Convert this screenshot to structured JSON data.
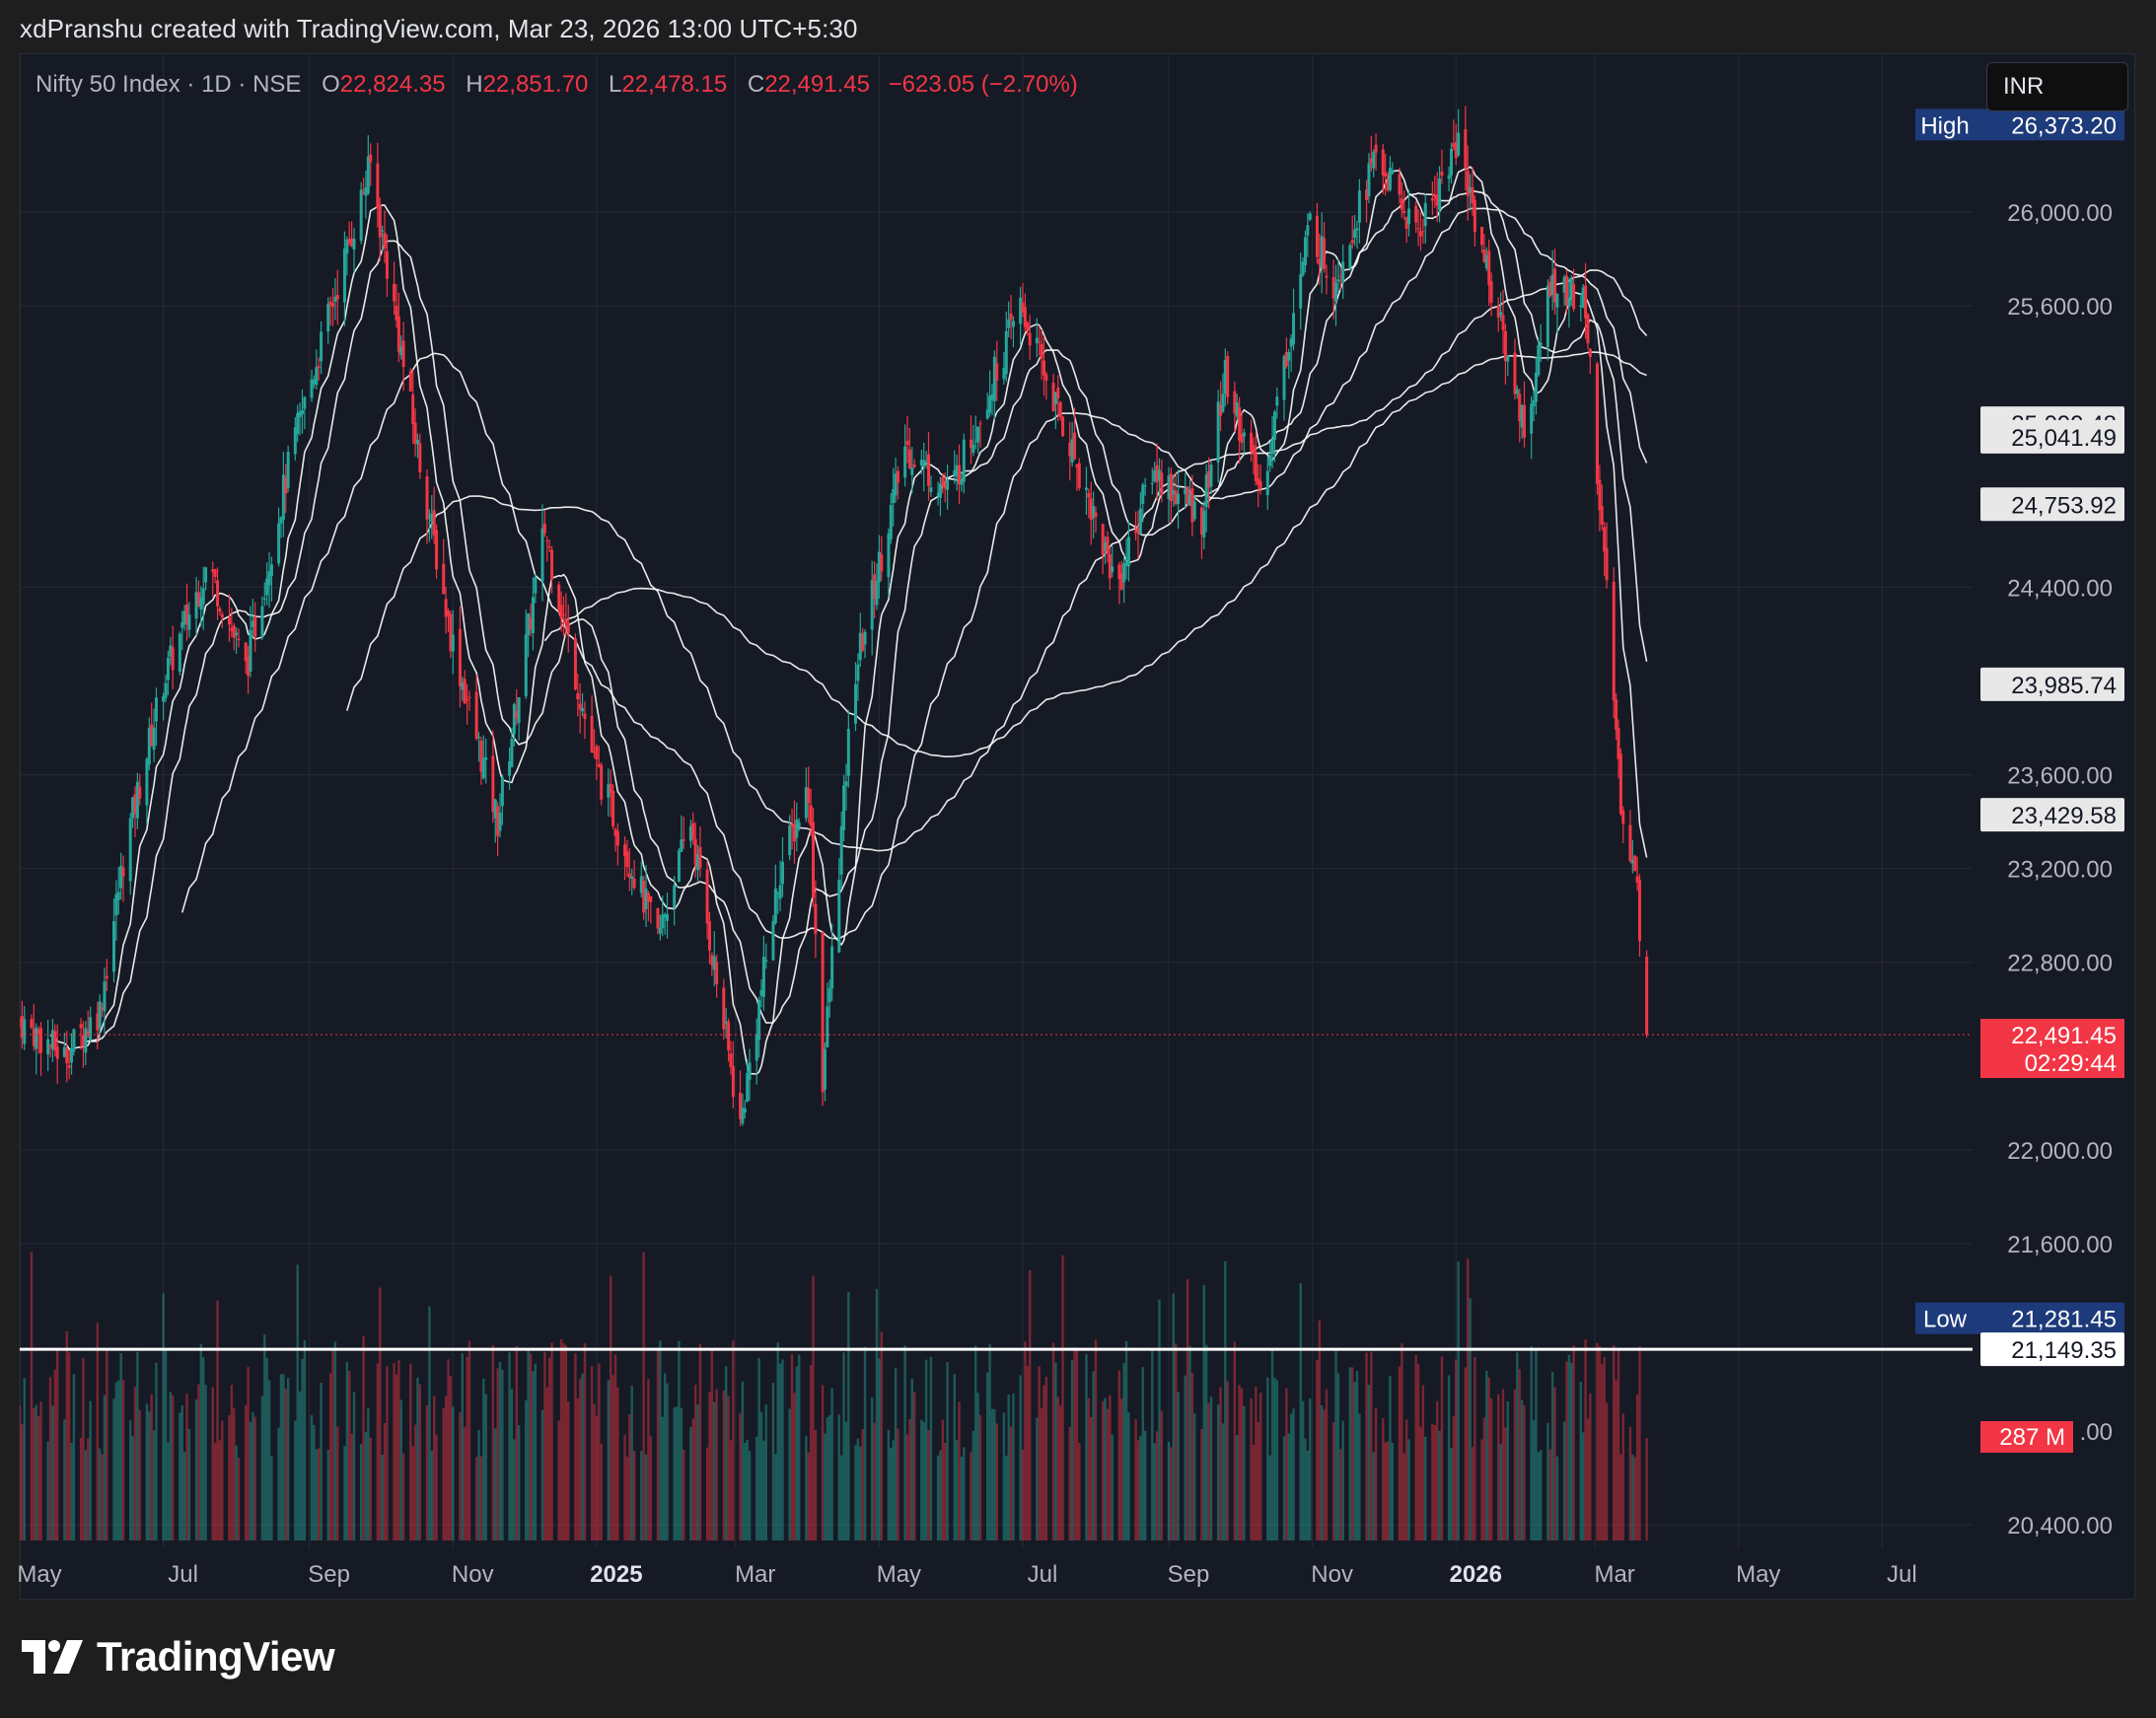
{
  "header": {
    "credit": "xdPranshu created with TradingView.com, Mar 23, 2026 13:00 UTC+5:30"
  },
  "legend": {
    "symbol": "Nifty 50 Index · 1D · NSE",
    "open_label": "O",
    "open": "22,824.35",
    "high_label": "H",
    "high": "22,851.70",
    "low_label": "L",
    "low": "22,478.15",
    "close_label": "C",
    "close": "22,491.45",
    "change": "−623.05 (−2.70%)"
  },
  "currency_button": "INR",
  "brand": "TradingView",
  "colors": {
    "background": "#161a25",
    "up": "#26a69a",
    "down": "#f23645",
    "ma_line": "#ffffff",
    "grid": "#252a36",
    "high_low_badge": "#1d3a7a"
  },
  "chart_data": {
    "type": "candlestick",
    "symbol": "Nifty 50 Index",
    "interval": "1D",
    "exchange": "NSE",
    "currency": "INR",
    "x_axis": {
      "range": [
        "2024-05-01",
        "2026-07-31"
      ],
      "ticks": [
        {
          "label": "May",
          "date": "2024-05-01",
          "bold": false
        },
        {
          "label": "Jul",
          "date": "2024-07-01",
          "bold": false
        },
        {
          "label": "Sep",
          "date": "2024-09-01",
          "bold": false
        },
        {
          "label": "Nov",
          "date": "2024-11-01",
          "bold": false
        },
        {
          "label": "2025",
          "date": "2025-01-01",
          "bold": true
        },
        {
          "label": "Mar",
          "date": "2025-03-01",
          "bold": false
        },
        {
          "label": "May",
          "date": "2025-05-01",
          "bold": false
        },
        {
          "label": "Jul",
          "date": "2025-07-01",
          "bold": false
        },
        {
          "label": "Sep",
          "date": "2025-09-01",
          "bold": false
        },
        {
          "label": "Nov",
          "date": "2025-11-01",
          "bold": false
        },
        {
          "label": "2026",
          "date": "2026-01-01",
          "bold": true
        },
        {
          "label": "Mar",
          "date": "2026-03-01",
          "bold": false
        },
        {
          "label": "May",
          "date": "2026-05-01",
          "bold": false
        },
        {
          "label": "Jul",
          "date": "2026-07-01",
          "bold": false
        }
      ]
    },
    "y_axis": {
      "range": [
        20300,
        26400
      ],
      "ticks": [
        "26,000.00",
        "25,600.00",
        "24,400.00",
        "23,600.00",
        "23,200.00",
        "22,800.00",
        "22,000.00",
        "21,600.00",
        "20,400.00"
      ],
      "tick_values": [
        26000,
        25600,
        24400,
        23600,
        23200,
        22800,
        22000,
        21600,
        20400
      ],
      "partially_hidden_ticks": [
        {
          "label": ".00",
          "value": 20800
        }
      ]
    },
    "grid": true,
    "key_points": [
      {
        "date": "2024-05-01",
        "close": 22550
      },
      {
        "date": "2024-05-20",
        "close": 22400
      },
      {
        "date": "2024-06-04",
        "close": 22600,
        "low": 21281.45
      },
      {
        "date": "2024-06-15",
        "close": 23300
      },
      {
        "date": "2024-07-01",
        "close": 24000
      },
      {
        "date": "2024-07-20",
        "close": 24500
      },
      {
        "date": "2024-08-05",
        "close": 24050
      },
      {
        "date": "2024-08-25",
        "close": 25000
      },
      {
        "date": "2024-09-27",
        "close": 26200
      },
      {
        "date": "2024-10-15",
        "close": 25100
      },
      {
        "date": "2024-10-31",
        "close": 24200
      },
      {
        "date": "2024-11-20",
        "close": 23400
      },
      {
        "date": "2024-12-10",
        "close": 24650
      },
      {
        "date": "2024-12-31",
        "close": 23650
      },
      {
        "date": "2025-01-27",
        "close": 22900
      },
      {
        "date": "2025-02-10",
        "close": 23400
      },
      {
        "date": "2025-03-03",
        "close": 22100
      },
      {
        "date": "2025-03-20",
        "close": 23200
      },
      {
        "date": "2025-04-01",
        "close": 23550
      },
      {
        "date": "2025-04-07",
        "close": 22300
      },
      {
        "date": "2025-04-20",
        "close": 24000
      },
      {
        "date": "2025-05-12",
        "close": 25000
      },
      {
        "date": "2025-05-31",
        "close": 24800
      },
      {
        "date": "2025-06-30",
        "close": 25600
      },
      {
        "date": "2025-07-25",
        "close": 24900
      },
      {
        "date": "2025-08-10",
        "close": 24400
      },
      {
        "date": "2025-08-25",
        "close": 24900
      },
      {
        "date": "2025-09-15",
        "close": 24700
      },
      {
        "date": "2025-09-25",
        "close": 25300
      },
      {
        "date": "2025-10-10",
        "close": 24800
      },
      {
        "date": "2025-10-31",
        "close": 25950
      },
      {
        "date": "2025-11-10",
        "close": 25700
      },
      {
        "date": "2025-11-28",
        "close": 26250
      },
      {
        "date": "2025-12-15",
        "close": 25900
      },
      {
        "date": "2026-01-02",
        "close": 26300
      },
      {
        "date": "2026-01-20",
        "close": 25500
      },
      {
        "date": "2026-01-31",
        "close": 25050
      },
      {
        "date": "2026-02-10",
        "close": 25700
      },
      {
        "date": "2026-02-25",
        "close": 25600
      },
      {
        "date": "2026-03-05",
        "close": 24500
      },
      {
        "date": "2026-03-12",
        "close": 23500
      },
      {
        "date": "2026-03-19",
        "close": 23100
      },
      {
        "date": "2026-03-23",
        "close": 22491.45,
        "open": 22824.35,
        "high": 22851.7,
        "low": 22478.15
      }
    ],
    "moving_average_labels": [
      "25,099.48",
      "25,041.49",
      "24,753.92",
      "23,985.74",
      "23,429.58"
    ],
    "moving_average_values": [
      25099.48,
      25041.49,
      24753.92,
      23985.74,
      23429.58
    ],
    "price_labels": {
      "high_label": "High",
      "high": "26,373.20",
      "high_value": 26373.2,
      "low_label": "Low",
      "low": "21,281.45",
      "low_value": 21281.45,
      "last": "22,491.45",
      "last_value": 22491.45,
      "countdown": "02:29:44"
    },
    "horizontal_line": {
      "label": "21,149.35",
      "value": 21149.35
    },
    "volume_label": "287 M",
    "volume_label_value": 287
  }
}
